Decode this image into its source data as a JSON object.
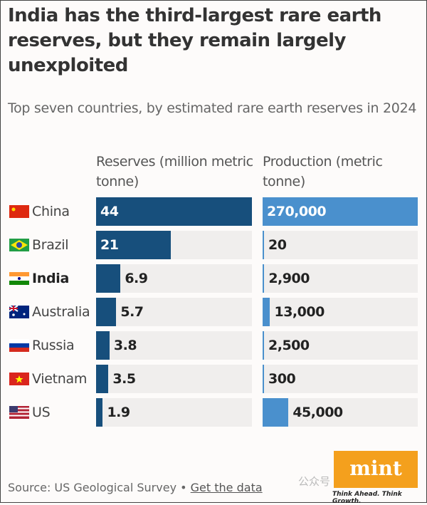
{
  "title": "India has the third-largest rare earth reserves, but they remain largely unexploited",
  "subtitle": "Top seven countries, by estimated rare earth reserves in 2024",
  "chart_data": {
    "type": "bar",
    "orientation": "horizontal",
    "categories": [
      "China",
      "Brazil",
      "India",
      "Australia",
      "Russia",
      "Vietnam",
      "US"
    ],
    "highlight": "India",
    "series": [
      {
        "name": "Reserves (million metric tonne)",
        "values": [
          44,
          21,
          6.9,
          5.7,
          3.8,
          3.5,
          1.9
        ],
        "labels": [
          "44",
          "21",
          "6.9",
          "5.7",
          "3.8",
          "3.5",
          "1.9"
        ],
        "color": "#174f7c"
      },
      {
        "name": "Production (metric tonne)",
        "values": [
          270000,
          20,
          2900,
          13000,
          2500,
          300,
          45000
        ],
        "labels": [
          "270,000",
          "20",
          "2,900",
          "13,000",
          "2,500",
          "300",
          "45,000"
        ],
        "color": "#4a90cd"
      }
    ],
    "track_color": "#f0eeed"
  },
  "source": "Source: US Geological Survey •",
  "link": "Get the data",
  "logo": "mint",
  "tagline": "Think Ahead. Think Growth.",
  "watermark": "公众号 · 观察者网"
}
